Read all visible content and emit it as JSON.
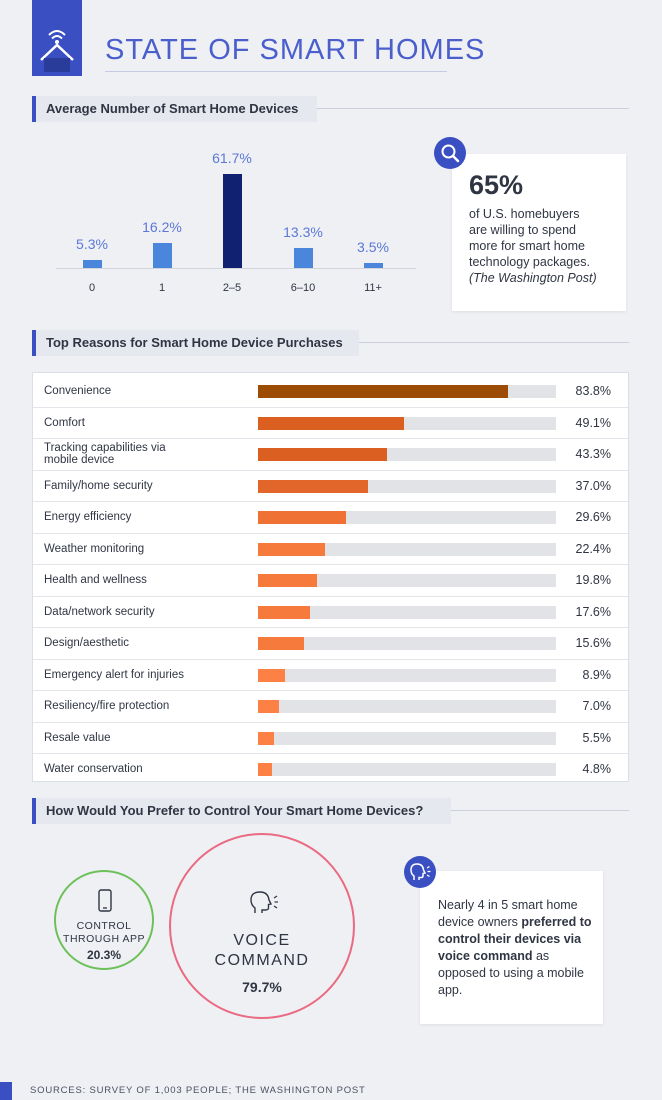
{
  "header": {
    "title": "STATE OF SMART HOMES",
    "logo_icon": "smart-home-wifi-icon"
  },
  "devices_section": {
    "heading": "Average Number of Smart Home Devices"
  },
  "stat_callout": {
    "icon": "search-icon",
    "value": "65%",
    "lines": [
      "of U.S. homebuyers",
      "are willing to spend",
      "more for smart home",
      "technology packages."
    ],
    "source": "(The Washington Post)"
  },
  "reasons_section": {
    "heading": "Top Reasons for Smart Home Device Purchases"
  },
  "control_section": {
    "heading": "How Would You Prefer to Control Your Smart Home Devices?",
    "app": {
      "icon": "smartphone-icon",
      "label_1": "CONTROL",
      "label_2": "THROUGH APP",
      "value": "20.3%",
      "color": "#6ec15a"
    },
    "voice": {
      "icon": "voice-head-icon",
      "label_1": "VOICE",
      "label_2": "COMMAND",
      "value": "79.7%",
      "color": "#ea6a82"
    },
    "callout": {
      "icon": "speaking-head-icon",
      "part_1": "Nearly 4 in 5 smart home device owners ",
      "part_bold": "preferred to control their devices via voice command",
      "part_2": " as opposed to using a mobile app."
    }
  },
  "footer": {
    "sources": "SOURCES: SURVEY OF 1,003 PEOPLE; THE WASHINGTON POST"
  },
  "chart_data": [
    {
      "type": "bar",
      "title": "Average Number of Smart Home Devices",
      "categories": [
        "0",
        "1",
        "2–5",
        "6–10",
        "11+"
      ],
      "values": [
        5.3,
        16.2,
        61.7,
        13.3,
        3.5
      ],
      "value_labels": [
        "5.3%",
        "16.2%",
        "61.7%",
        "13.3%",
        "3.5%"
      ],
      "highlight_index": 2,
      "colors": {
        "default": "#4a86dc",
        "highlight": "#0f2170"
      },
      "ylim": [
        0,
        61.7
      ]
    },
    {
      "type": "bar",
      "orientation": "horizontal",
      "title": "Top Reasons for Smart Home Device Purchases",
      "categories": [
        "Convenience",
        "Comfort",
        "Tracking capabilities via mobile device",
        "Family/home security",
        "Energy efficiency",
        "Weather monitoring",
        "Health and wellness",
        "Data/network security",
        "Design/aesthetic",
        "Emergency alert for injuries",
        "Resiliency/fire protection",
        "Resale value",
        "Water conservation"
      ],
      "values": [
        83.8,
        49.1,
        43.3,
        37.0,
        29.6,
        22.4,
        19.8,
        17.6,
        15.6,
        8.9,
        7.0,
        5.5,
        4.8
      ],
      "value_labels": [
        "83.8%",
        "49.1%",
        "43.3%",
        "37.0%",
        "29.6%",
        "22.4%",
        "19.8%",
        "17.6%",
        "15.6%",
        "8.9%",
        "7.0%",
        "5.5%",
        "4.8%"
      ],
      "colors": [
        "#9c4c05",
        "#dc5f22",
        "#dc5f22",
        "#e2662a",
        "#ef7134",
        "#f77a3d",
        "#f77a3d",
        "#f77a3d",
        "#f77a3d",
        "#fd8145",
        "#fd8145",
        "#fd8145",
        "#fd8145"
      ],
      "xlim": [
        0,
        100
      ]
    },
    {
      "type": "pie",
      "title": "How Would You Prefer to Control Your Smart Home Devices?",
      "categories": [
        "CONTROL THROUGH APP",
        "VOICE COMMAND"
      ],
      "values": [
        20.3,
        79.7
      ]
    }
  ]
}
